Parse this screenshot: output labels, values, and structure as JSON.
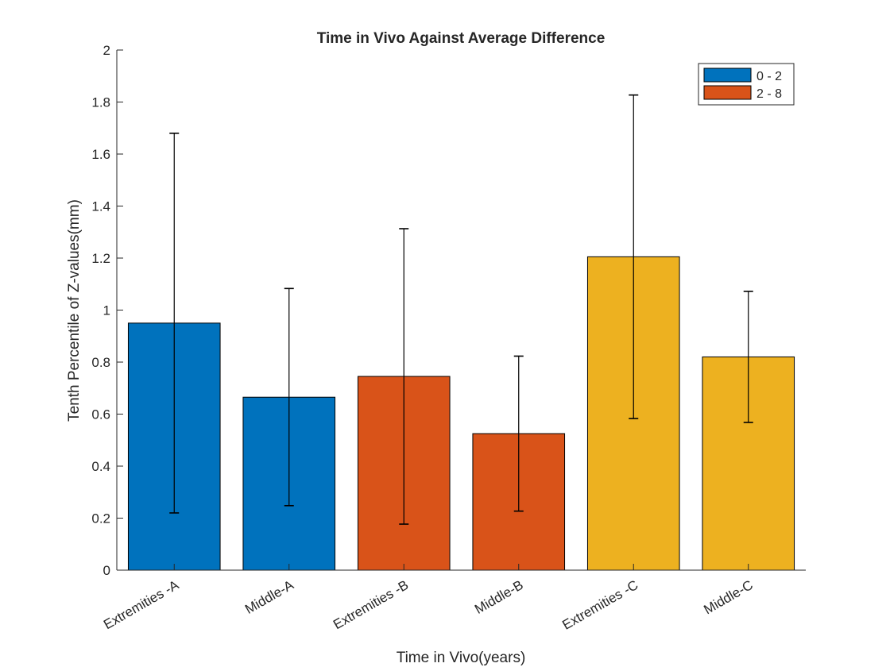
{
  "chart_data": {
    "type": "bar",
    "title": "Time in Vivo Against Average Difference",
    "xlabel": "Time in Vivo(years)",
    "ylabel": "Tenth Percentile of Z-values(mm)",
    "ylim": [
      0,
      2
    ],
    "yticks": [
      0,
      0.2,
      0.4,
      0.6,
      0.8,
      1,
      1.2,
      1.4,
      1.6,
      1.8,
      2
    ],
    "ytick_labels": [
      "0",
      "0.2",
      "0.4",
      "0.6",
      "0.8",
      "1",
      "1.2",
      "1.4",
      "1.6",
      "1.8",
      "2"
    ],
    "categories": [
      "Extremities -A",
      "Middle-A",
      "Extremities -B",
      "Middle-B",
      "Extremities -C",
      "Middle-C"
    ],
    "values": [
      0.95,
      0.665,
      0.745,
      0.525,
      1.205,
      0.82
    ],
    "error_low": [
      0.22,
      0.248,
      0.177,
      0.227,
      0.583,
      0.568
    ],
    "error_high": [
      1.68,
      1.083,
      1.313,
      0.823,
      1.827,
      1.072
    ],
    "bar_colors": [
      "#0072BD",
      "#0072BD",
      "#D95319",
      "#D95319",
      "#EDB120",
      "#EDB120"
    ],
    "legend": {
      "position": "top-right",
      "entries": [
        {
          "label": "0 - 2",
          "color": "#0072BD"
        },
        {
          "label": "2 - 8",
          "color": "#D95319"
        }
      ]
    },
    "grid": false
  }
}
